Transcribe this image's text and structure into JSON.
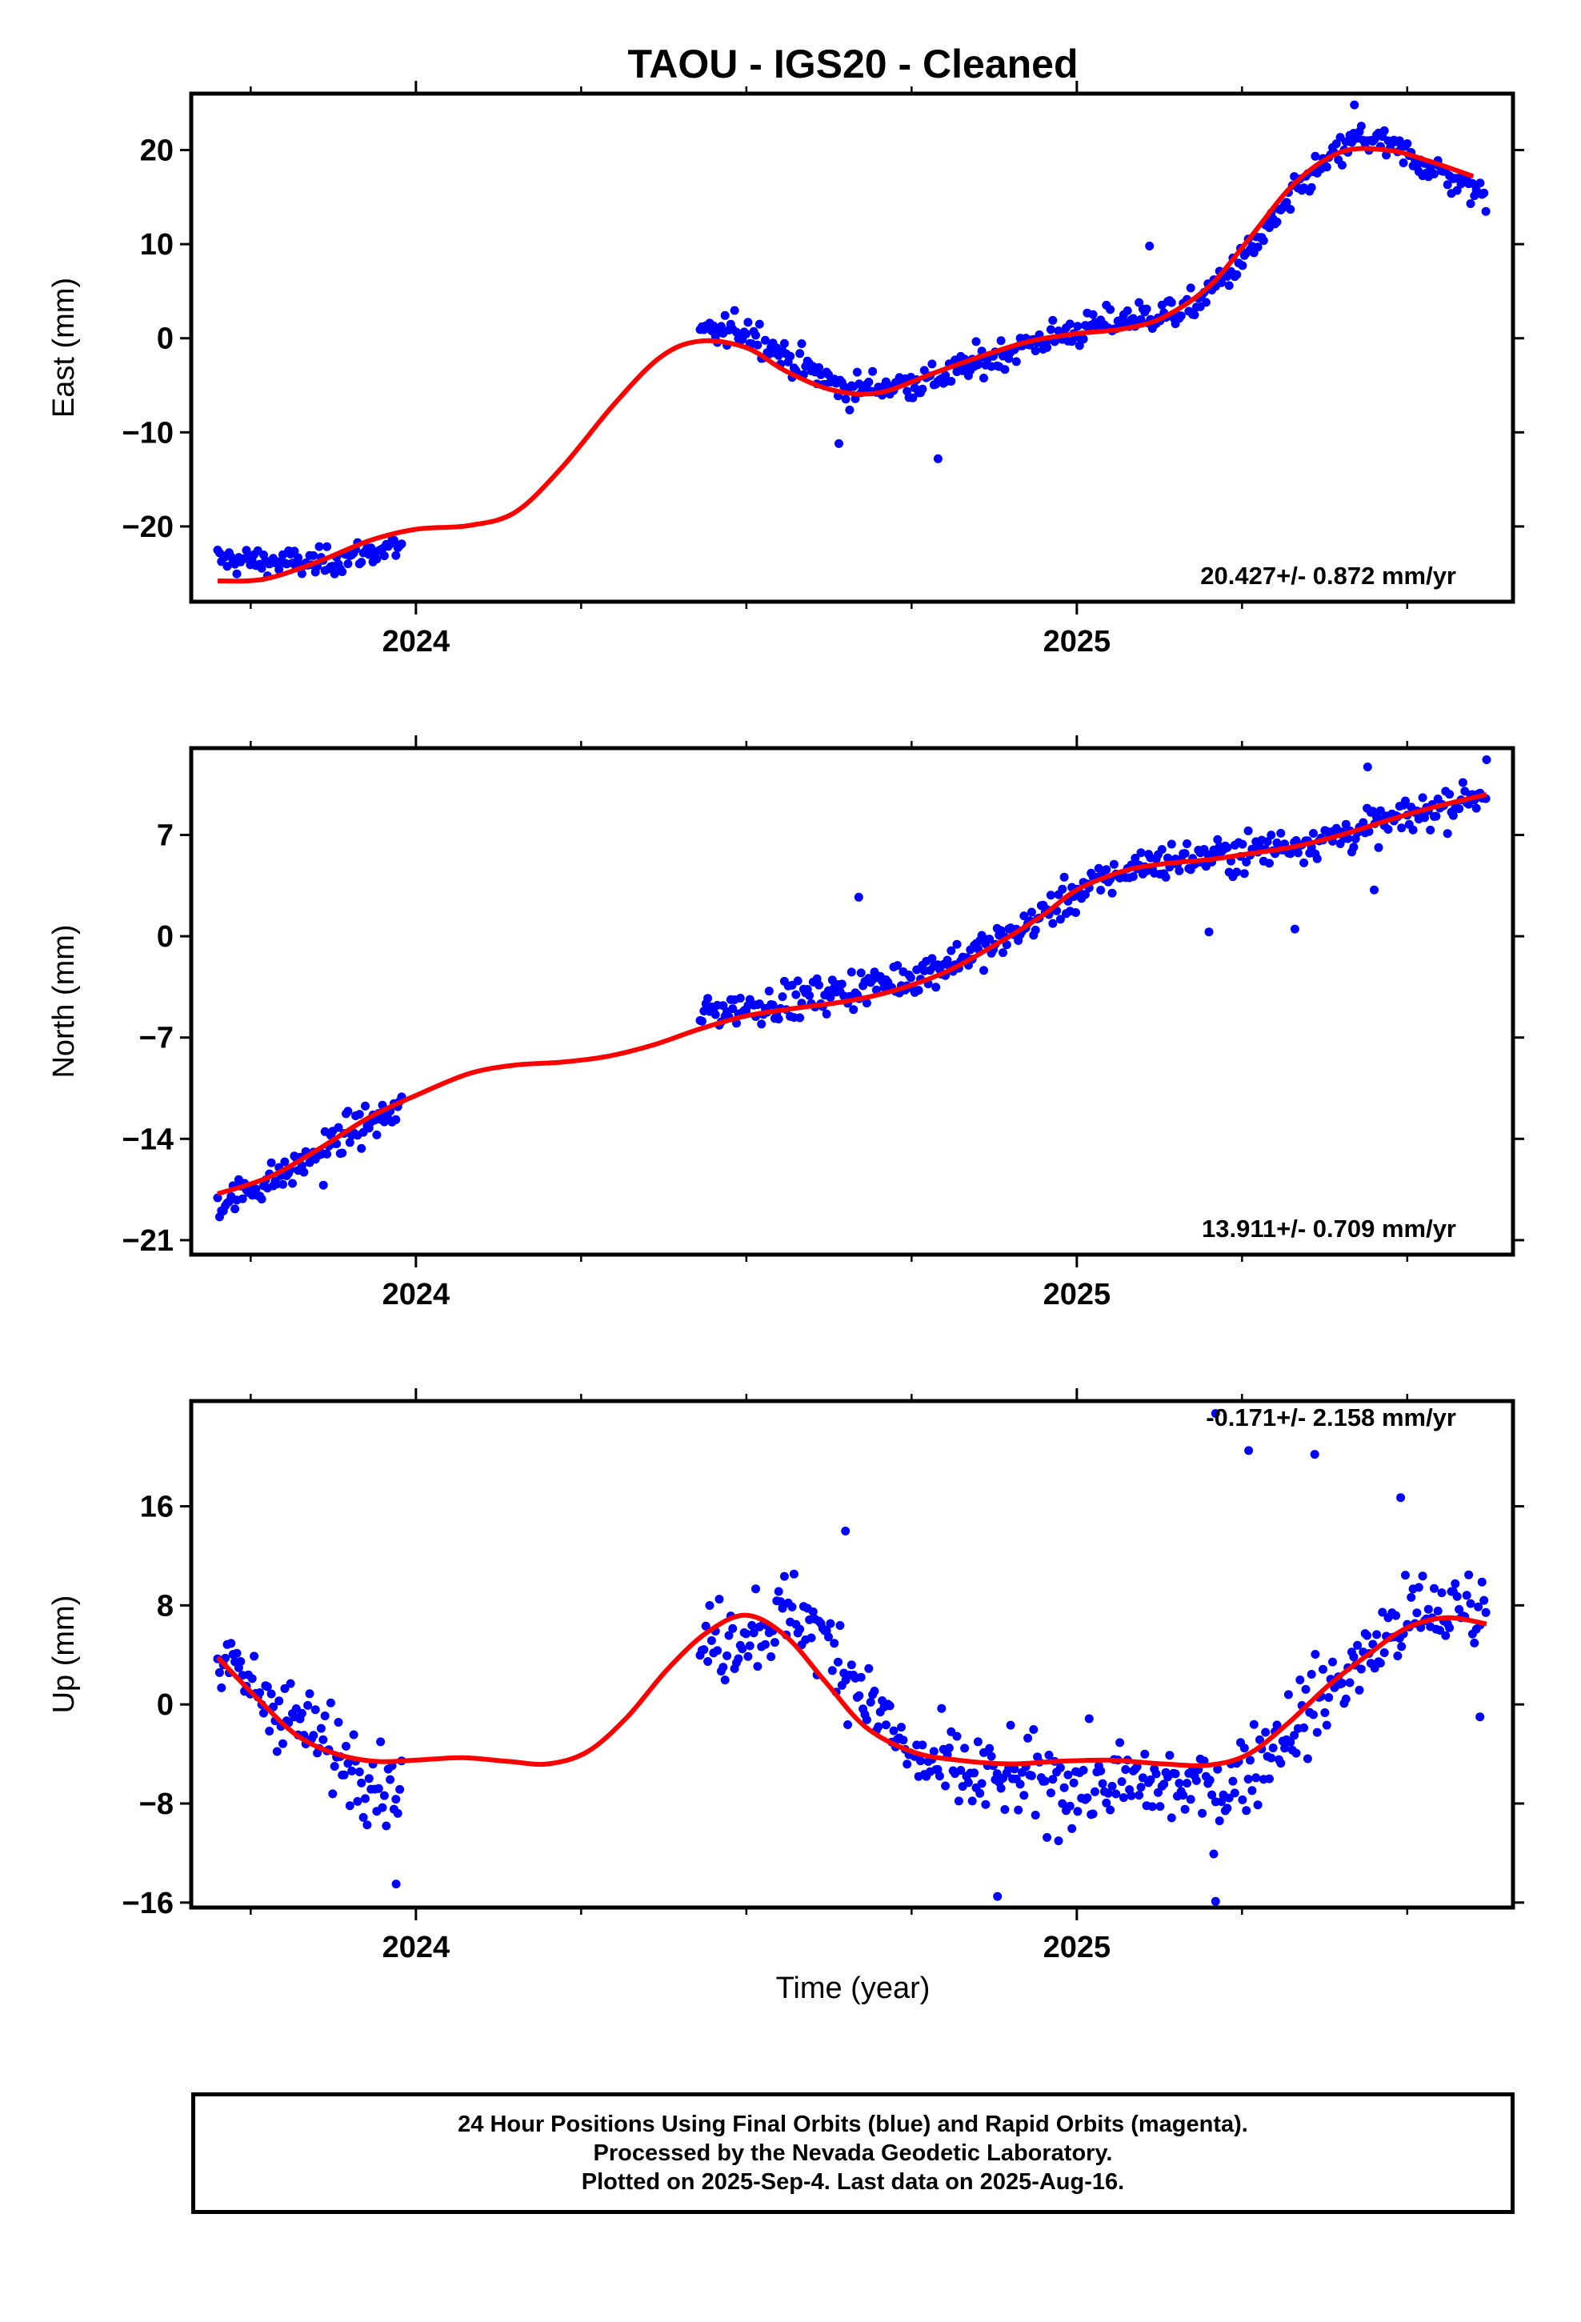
{
  "title": "TAOU  - IGS20 - Cleaned",
  "xlabel": "Time (year)",
  "caption": [
    "24 Hour Positions Using Final Orbits (blue) and Rapid Orbits (magenta).",
    "Processed by the Nevada Geodetic Laboratory.",
    "Plotted on 2025-Sep-4. Last data on 2025-Aug-16."
  ],
  "colors": {
    "points": "#0000ff",
    "fit": "#ff0000",
    "frame": "#000000"
  },
  "chart_data": [
    {
      "type": "scatter",
      "ylabel": "East (mm)",
      "rate_label": "20.427+/- 0.872 mm/yr",
      "xlim": [
        2023.66,
        2025.66
      ],
      "ylim": [
        -28,
        26
      ],
      "yticks": [
        -20,
        -10,
        0,
        10,
        20
      ],
      "xticks": [
        2024,
        2025
      ],
      "fit": {
        "x": [
          2023.7,
          2023.77,
          2023.85,
          2023.93,
          2024.0,
          2024.08,
          2024.15,
          2024.22,
          2024.3,
          2024.37,
          2024.43,
          2024.5,
          2024.56,
          2024.63,
          2024.7,
          2024.78,
          2024.86,
          2024.93,
          2025.0,
          2025.07,
          2025.13,
          2025.2,
          2025.26,
          2025.33,
          2025.4,
          2025.47,
          2025.53,
          2025.6
        ],
        "y": [
          -25.8,
          -25.6,
          -23.8,
          -21.5,
          -20.3,
          -19.9,
          -18.5,
          -13.8,
          -7.0,
          -2.0,
          -0.3,
          -1.0,
          -3.5,
          -5.5,
          -5.8,
          -3.8,
          -1.8,
          -0.3,
          0.5,
          1.0,
          2.2,
          5.5,
          10.5,
          16.5,
          19.8,
          20.0,
          18.9,
          17.2
        ]
      },
      "point_segments": [
        {
          "x_range": [
            2023.7,
            2023.98
          ],
          "trend": [
            [
              2023.7,
              -23.5
            ],
            [
              2023.85,
              -24.0
            ],
            [
              2023.98,
              -22.0
            ]
          ],
          "scatter": 1.4
        },
        {
          "x_range": [
            2024.43,
            2025.62
          ],
          "trend": [
            [
              2024.43,
              0.3
            ],
            [
              2024.5,
              1.0
            ],
            [
              2024.56,
              -2.0
            ],
            [
              2024.65,
              -5.5
            ],
            [
              2024.78,
              -4.5
            ],
            [
              2024.93,
              -0.5
            ],
            [
              2025.07,
              2.0
            ],
            [
              2025.17,
              3.0
            ],
            [
              2025.26,
              9.0
            ],
            [
              2025.35,
              17.0
            ],
            [
              2025.43,
              21.5
            ],
            [
              2025.5,
              19.5
            ],
            [
              2025.62,
              15.0
            ]
          ],
          "scatter": 1.6
        }
      ],
      "outliers": [
        [
          2024.64,
          -11.2
        ],
        [
          2024.79,
          -12.8
        ],
        [
          2025.11,
          9.8
        ],
        [
          2025.42,
          24.8
        ]
      ]
    },
    {
      "type": "scatter",
      "ylabel": "North (mm)",
      "rate_label": "13.911+/- 0.709 mm/yr",
      "xlim": [
        2023.66,
        2025.66
      ],
      "ylim": [
        -22,
        13
      ],
      "yticks": [
        -21,
        -14,
        -7,
        0,
        7
      ],
      "xticks": [
        2024,
        2025
      ],
      "fit": {
        "x": [
          2023.7,
          2023.78,
          2023.86,
          2023.93,
          2024.0,
          2024.08,
          2024.15,
          2024.22,
          2024.29,
          2024.36,
          2024.43,
          2024.5,
          2024.57,
          2024.65,
          2024.72,
          2024.8,
          2024.88,
          2024.95,
          2025.0,
          2025.07,
          2025.13,
          2025.2,
          2025.26,
          2025.33,
          2025.4,
          2025.47,
          2025.53,
          2025.62
        ],
        "y": [
          -17.8,
          -16.6,
          -14.5,
          -12.5,
          -11.0,
          -9.5,
          -8.9,
          -8.7,
          -8.3,
          -7.5,
          -6.4,
          -5.5,
          -5.0,
          -4.5,
          -3.8,
          -2.5,
          -0.5,
          1.5,
          3.2,
          4.5,
          5.0,
          5.3,
          5.7,
          6.2,
          7.0,
          8.0,
          8.8,
          9.8
        ]
      },
      "point_segments": [
        {
          "x_range": [
            2023.7,
            2023.98
          ],
          "trend": [
            [
              2023.7,
              -18.5
            ],
            [
              2023.8,
              -16.5
            ],
            [
              2023.9,
              -13.5
            ],
            [
              2023.98,
              -12.0
            ]
          ],
          "scatter": 1.1
        },
        {
          "x_range": [
            2024.43,
            2025.62
          ],
          "trend": [
            [
              2024.43,
              -5.3
            ],
            [
              2024.6,
              -4.2
            ],
            [
              2024.75,
              -2.8
            ],
            [
              2024.88,
              -0.5
            ],
            [
              2025.0,
              3.0
            ],
            [
              2025.1,
              5.0
            ],
            [
              2025.26,
              5.8
            ],
            [
              2025.4,
              7.0
            ],
            [
              2025.5,
              8.2
            ],
            [
              2025.62,
              10.0
            ]
          ],
          "scatter": 1.2
        }
      ],
      "outliers": [
        [
          2025.2,
          0.3
        ],
        [
          2025.33,
          0.5
        ],
        [
          2025.45,
          3.2
        ],
        [
          2024.67,
          2.7
        ],
        [
          2025.44,
          11.7
        ],
        [
          2025.62,
          12.2
        ],
        [
          2023.86,
          -17.2
        ]
      ]
    },
    {
      "type": "scatter",
      "ylabel": "Up (mm)",
      "rate_label": "-0.171+/- 2.158 mm/yr",
      "xlim": [
        2023.66,
        2025.66
      ],
      "ylim": [
        -16.4,
        24.5
      ],
      "yticks": [
        -16,
        -8,
        0,
        8,
        16
      ],
      "xticks": [
        2024,
        2025
      ],
      "fit": {
        "x": [
          2023.7,
          2023.76,
          2023.82,
          2023.88,
          2023.94,
          2024.0,
          2024.07,
          2024.14,
          2024.2,
          2024.26,
          2024.32,
          2024.38,
          2024.44,
          2024.5,
          2024.56,
          2024.62,
          2024.68,
          2024.75,
          2024.82,
          2024.9,
          2024.97,
          2025.05,
          2025.13,
          2025.2,
          2025.26,
          2025.32,
          2025.38,
          2025.44,
          2025.5,
          2025.56,
          2025.62
        ],
        "y": [
          3.8,
          0.5,
          -2.5,
          -4.0,
          -4.6,
          -4.5,
          -4.3,
          -4.6,
          -4.8,
          -3.8,
          -1.0,
          2.8,
          5.8,
          7.2,
          5.5,
          1.8,
          -1.8,
          -3.8,
          -4.5,
          -4.8,
          -4.6,
          -4.5,
          -4.8,
          -4.9,
          -4.0,
          -1.5,
          1.5,
          4.0,
          6.2,
          7.0,
          6.5
        ]
      },
      "point_segments": [
        {
          "x_range": [
            2023.7,
            2023.98
          ],
          "trend": [
            [
              2023.7,
              3.5
            ],
            [
              2023.8,
              -0.5
            ],
            [
              2023.88,
              -4.0
            ],
            [
              2023.98,
              -7.0
            ]
          ],
          "scatter": 3.0
        },
        {
          "x_range": [
            2024.43,
            2025.62
          ],
          "trend": [
            [
              2024.43,
              4.5
            ],
            [
              2024.5,
              6.0
            ],
            [
              2024.58,
              7.5
            ],
            [
              2024.66,
              2.5
            ],
            [
              2024.75,
              -4.5
            ],
            [
              2024.85,
              -6.0
            ],
            [
              2025.0,
              -6.5
            ],
            [
              2025.12,
              -6.5
            ],
            [
              2025.22,
              -7.0
            ],
            [
              2025.3,
              -3.0
            ],
            [
              2025.4,
              2.0
            ],
            [
              2025.5,
              7.0
            ],
            [
              2025.62,
              8.0
            ]
          ],
          "scatter": 3.2
        }
      ],
      "outliers": [
        [
          2024.88,
          -15.5
        ],
        [
          2025.21,
          -15.9
        ],
        [
          2025.21,
          23.5
        ],
        [
          2025.26,
          20.5
        ],
        [
          2025.36,
          20.2
        ],
        [
          2025.49,
          16.7
        ],
        [
          2024.65,
          14.0
        ],
        [
          2023.97,
          -14.5
        ],
        [
          2025.61,
          -1.0
        ]
      ]
    }
  ]
}
